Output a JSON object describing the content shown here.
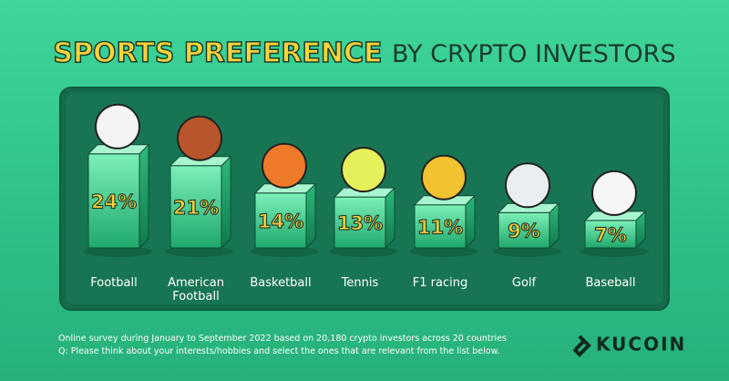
{
  "chart_data": {
    "type": "bar",
    "title": [
      "SPORTS PREFERENCE",
      "BY CRYPTO INVESTORS"
    ],
    "categories": [
      "Football",
      "American Football",
      "Basketball",
      "Tennis",
      "F1 racing",
      "Golf",
      "Baseball"
    ],
    "values": [
      24,
      21,
      14,
      13,
      11,
      9,
      7
    ],
    "value_labels": [
      "24%",
      "21%",
      "14%",
      "13%",
      "11%",
      "9%",
      "7%"
    ],
    "color": "#3fcf8e",
    "notes": [
      "Online survey during January to September 2022 based on 20,180 crypto investors across 20 countries",
      "Q: Please think about your interests/hobbies and select the ones that are relevant from the list below."
    ],
    "brand": "KUCOIN"
  }
}
